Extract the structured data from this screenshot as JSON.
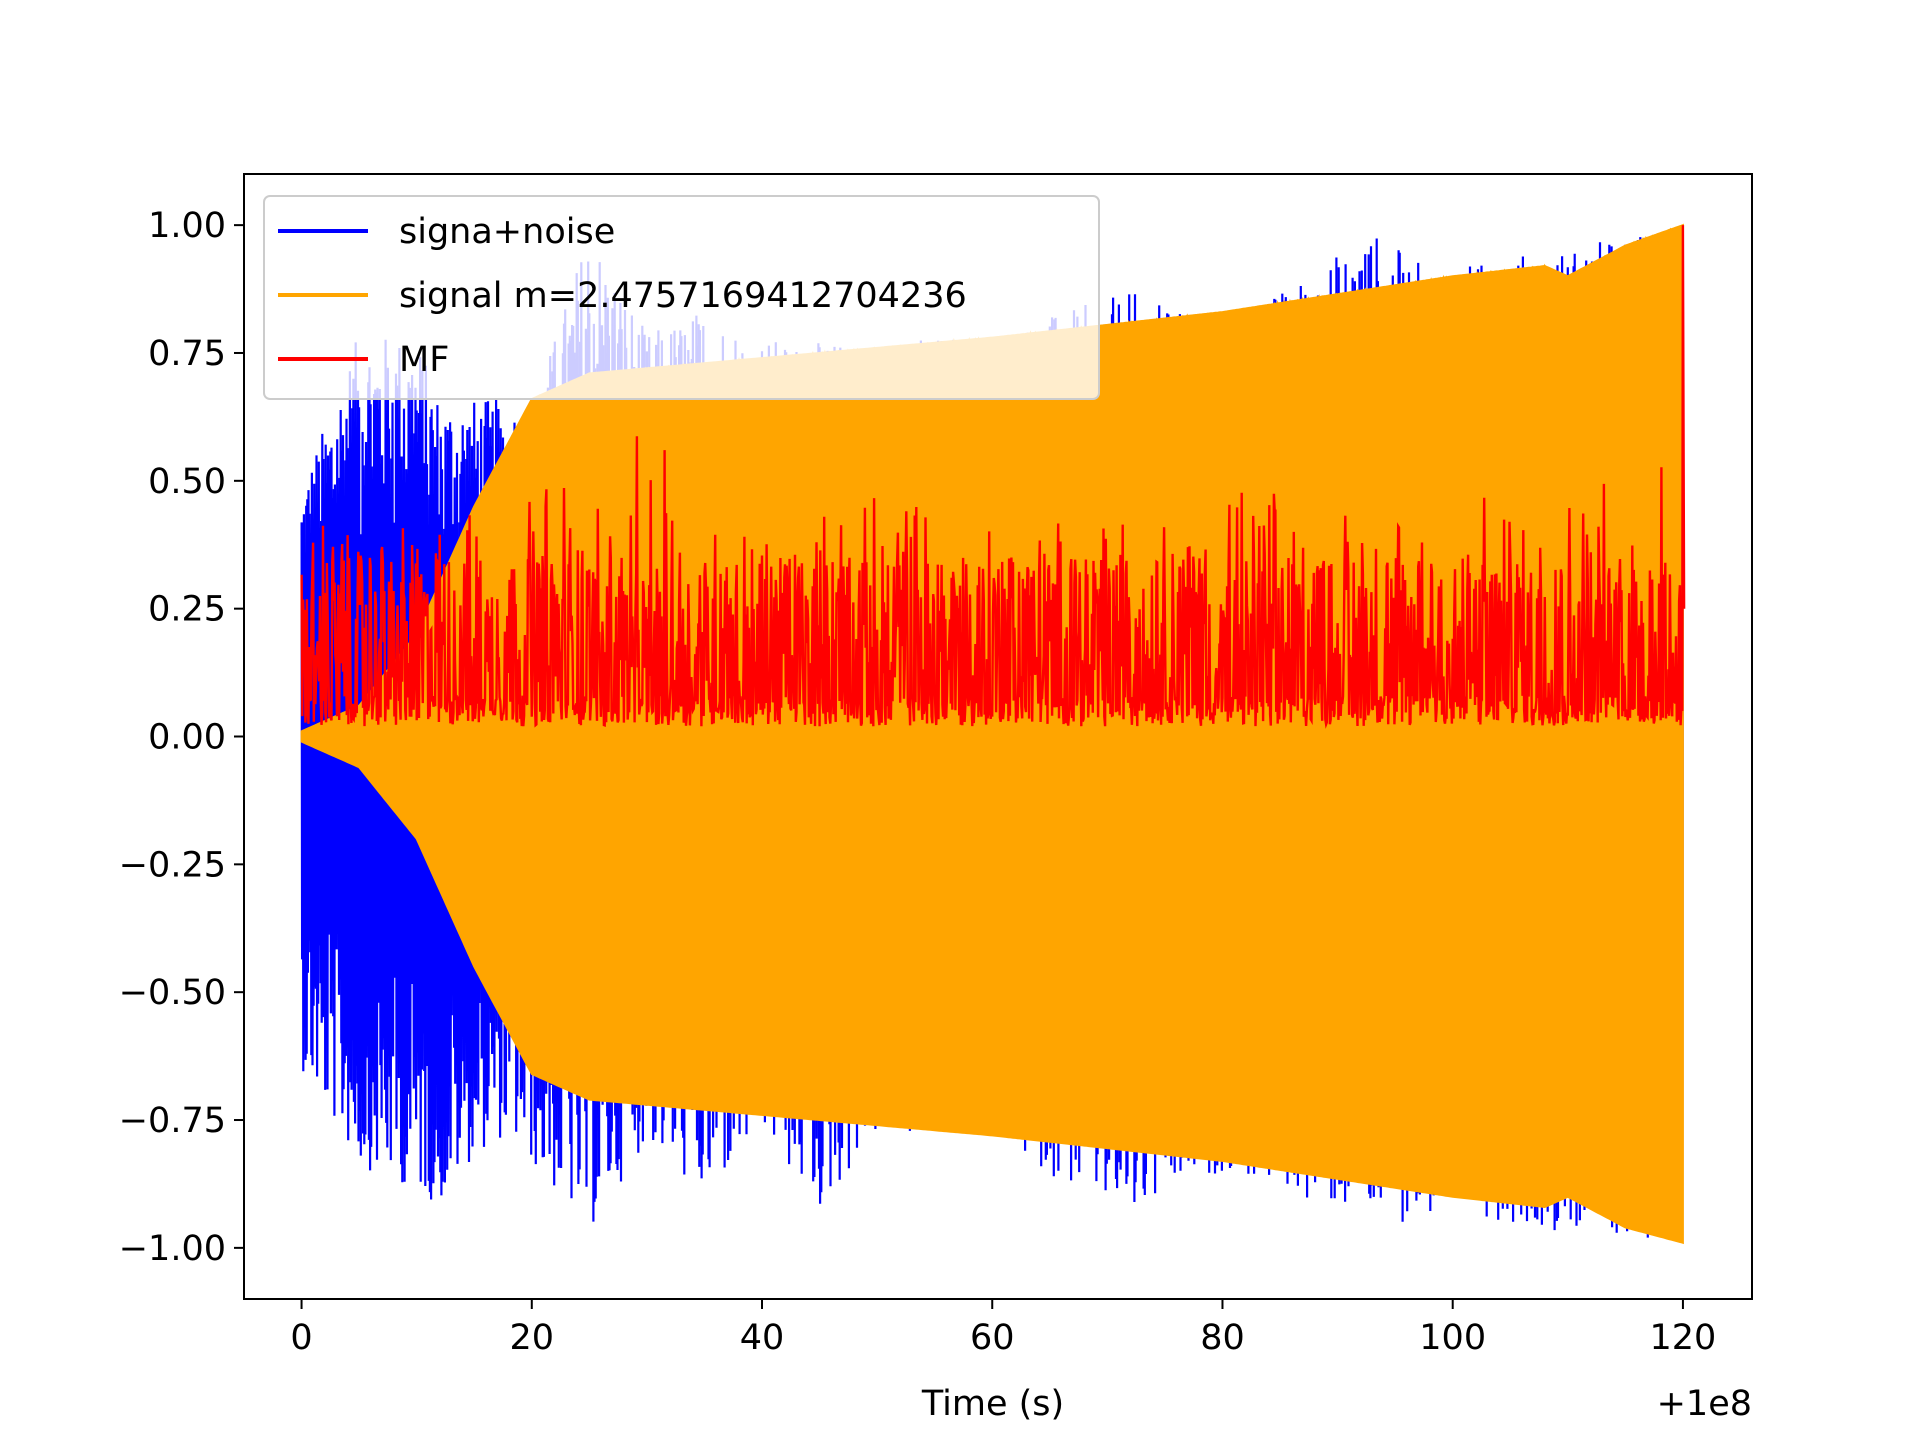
{
  "chart_data": {
    "type": "line",
    "title": "",
    "xlabel": "Time (s)",
    "ylabel": "",
    "x_offset_label": "+1e8",
    "xlim": [
      -5,
      126
    ],
    "ylim": [
      -1.1,
      1.1
    ],
    "x_ticks": [
      0,
      20,
      40,
      60,
      80,
      100,
      120
    ],
    "x_tick_labels": [
      "0",
      "20",
      "40",
      "60",
      "80",
      "100",
      "120"
    ],
    "y_ticks": [
      1.0,
      0.75,
      0.5,
      0.25,
      0.0,
      -0.25,
      -0.5,
      -0.75,
      -1.0
    ],
    "y_tick_labels": [
      "1.00",
      "0.75",
      "0.50",
      "0.25",
      "0.00",
      "−0.25",
      "−0.50",
      "−0.75",
      "−1.00"
    ],
    "legend_position": "upper-left",
    "grid": false,
    "series": [
      {
        "name": "signa+noise",
        "color": "#0000ff",
        "style": "noisy-oscillation",
        "envelope_x": [
          0,
          5,
          10,
          12,
          15,
          18,
          20,
          25,
          30,
          35,
          40,
          45,
          50,
          60,
          72,
          80,
          93,
          97,
          100,
          110,
          120
        ],
        "envelope_upper": [
          0.49,
          0.79,
          0.78,
          0.66,
          0.66,
          0.66,
          0.64,
          1.0,
          0.79,
          0.84,
          0.78,
          0.77,
          0.78,
          0.79,
          0.87,
          0.8,
          0.99,
          0.93,
          0.92,
          0.96,
          1.0
        ],
        "envelope_lower": [
          -0.65,
          -0.84,
          -0.89,
          -0.92,
          -0.82,
          -0.78,
          -0.84,
          -0.97,
          -0.79,
          -0.91,
          -0.78,
          -0.93,
          -0.78,
          -0.79,
          -0.95,
          -0.85,
          -0.95,
          -0.95,
          -0.93,
          -0.97,
          -0.99
        ]
      },
      {
        "name": "signal m=2.4757169412704236",
        "color": "#ffa500",
        "style": "chirp-envelope",
        "envelope_x": [
          0,
          5,
          10,
          15,
          20,
          25,
          40,
          60,
          80,
          100,
          108,
          110,
          115,
          120
        ],
        "envelope_upper": [
          0.01,
          0.06,
          0.2,
          0.45,
          0.66,
          0.71,
          0.74,
          0.78,
          0.83,
          0.9,
          0.92,
          0.9,
          0.96,
          1.0
        ],
        "envelope_lower": [
          -0.01,
          -0.06,
          -0.2,
          -0.45,
          -0.66,
          -0.71,
          -0.74,
          -0.78,
          -0.83,
          -0.9,
          -0.92,
          -0.9,
          -0.96,
          -0.99
        ]
      },
      {
        "name": "MF",
        "color": "#ff0000",
        "style": "matched-filter",
        "baseline": 0.1,
        "typical_max": 0.35,
        "x": [
          0,
          2,
          8,
          10,
          29,
          40,
          52,
          60,
          70,
          80,
          100,
          110,
          116,
          120
        ],
        "peaks": [
          0.37,
          0.42,
          0.42,
          0.39,
          0.61,
          0.41,
          0.49,
          0.46,
          0.44,
          0.48,
          0.47,
          0.48,
          0.52,
          1.0
        ]
      }
    ]
  }
}
